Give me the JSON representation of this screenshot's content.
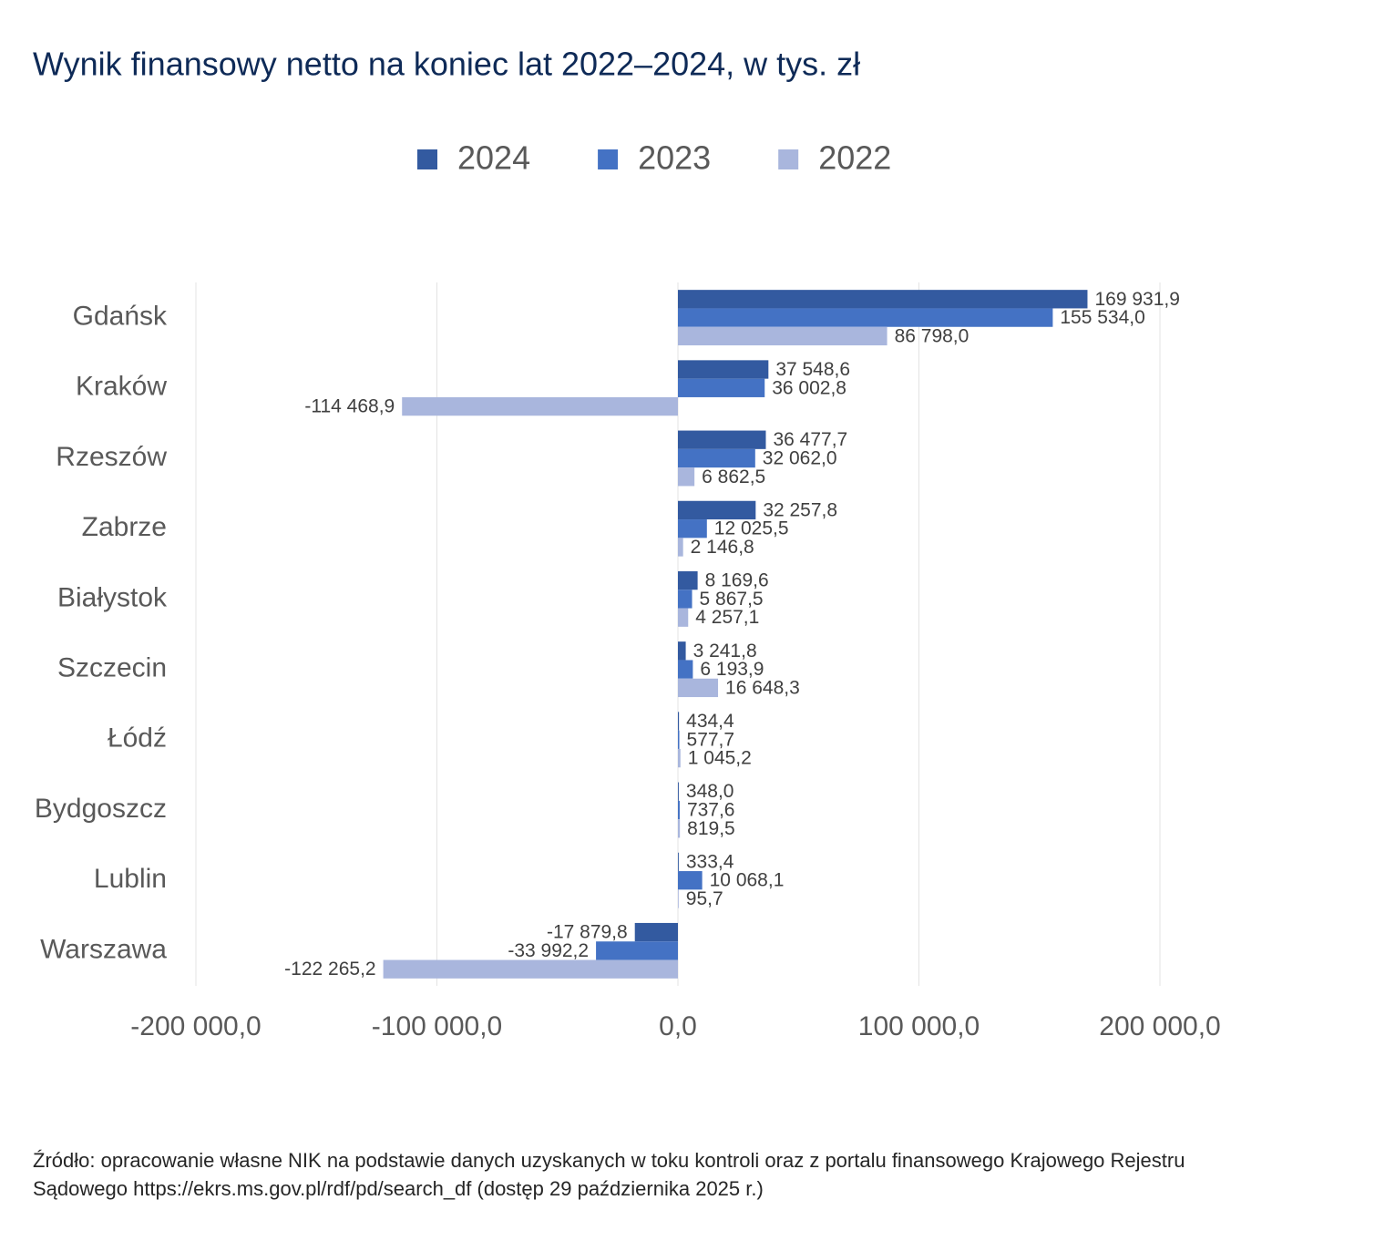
{
  "chart_data": {
    "type": "hbar",
    "title": "Wynik finansowy netto na koniec lat 2022–2024, w tys. zł",
    "categories": [
      "Gdańsk",
      "Kraków",
      "Rzeszów",
      "Zabrze",
      "Białystok",
      "Szczecin",
      "Łódź",
      "Bydgoszcz",
      "Lublin",
      "Warszawa"
    ],
    "series": [
      {
        "name": "2024",
        "color": "#335aa0",
        "values": [
          169931.9,
          37548.6,
          36477.7,
          32257.8,
          8169.6,
          3241.8,
          434.4,
          348.0,
          333.4,
          -17879.8
        ],
        "value_labels": [
          "169 931,9",
          "37 548,6",
          "36 477,7",
          "32 257,8",
          "8 169,6",
          "3 241,8",
          "434,4",
          "348,0",
          "333,4",
          "-17 879,8"
        ]
      },
      {
        "name": "2023",
        "color": "#4472c4",
        "values": [
          155534.0,
          36002.8,
          32062.0,
          12025.5,
          5867.5,
          6193.9,
          577.7,
          737.6,
          10068.1,
          -33992.2
        ],
        "value_labels": [
          "155 534,0",
          "36 002,8",
          "32 062,0",
          "12 025,5",
          "5 867,5",
          "6 193,9",
          "577,7",
          "737,6",
          "10 068,1",
          "-33 992,2"
        ]
      },
      {
        "name": "2022",
        "color": "#a9b6dd",
        "values": [
          86798.0,
          -114468.9,
          6862.5,
          2146.8,
          4257.1,
          16648.3,
          1045.2,
          819.5,
          95.7,
          -122265.2
        ],
        "value_labels": [
          "86 798,0",
          "-114 468,9",
          "6 862,5",
          "2 146,8",
          "4 257,1",
          "16 648,3",
          "1 045,2",
          "819,5",
          "95,7",
          "-122 265,2"
        ]
      }
    ],
    "xlim": [
      -200000,
      200000
    ],
    "xticks": [
      {
        "value": -200000,
        "label": "-200 000,0"
      },
      {
        "value": -100000,
        "label": "-100 000,0"
      },
      {
        "value": 0,
        "label": "0,0"
      },
      {
        "value": 100000,
        "label": "100 000,0"
      },
      {
        "value": 200000,
        "label": "200 000,0"
      }
    ],
    "grid": true,
    "legend": "top",
    "source": "Źródło: opracowanie własne NIK na podstawie danych uzyskanych w toku kontroli oraz z portalu finansowego Krajowego Rejestru Sądowego https://ekrs.ms.gov.pl/rdf/pd/search_df (dostęp 29 października 2025 r.)"
  }
}
